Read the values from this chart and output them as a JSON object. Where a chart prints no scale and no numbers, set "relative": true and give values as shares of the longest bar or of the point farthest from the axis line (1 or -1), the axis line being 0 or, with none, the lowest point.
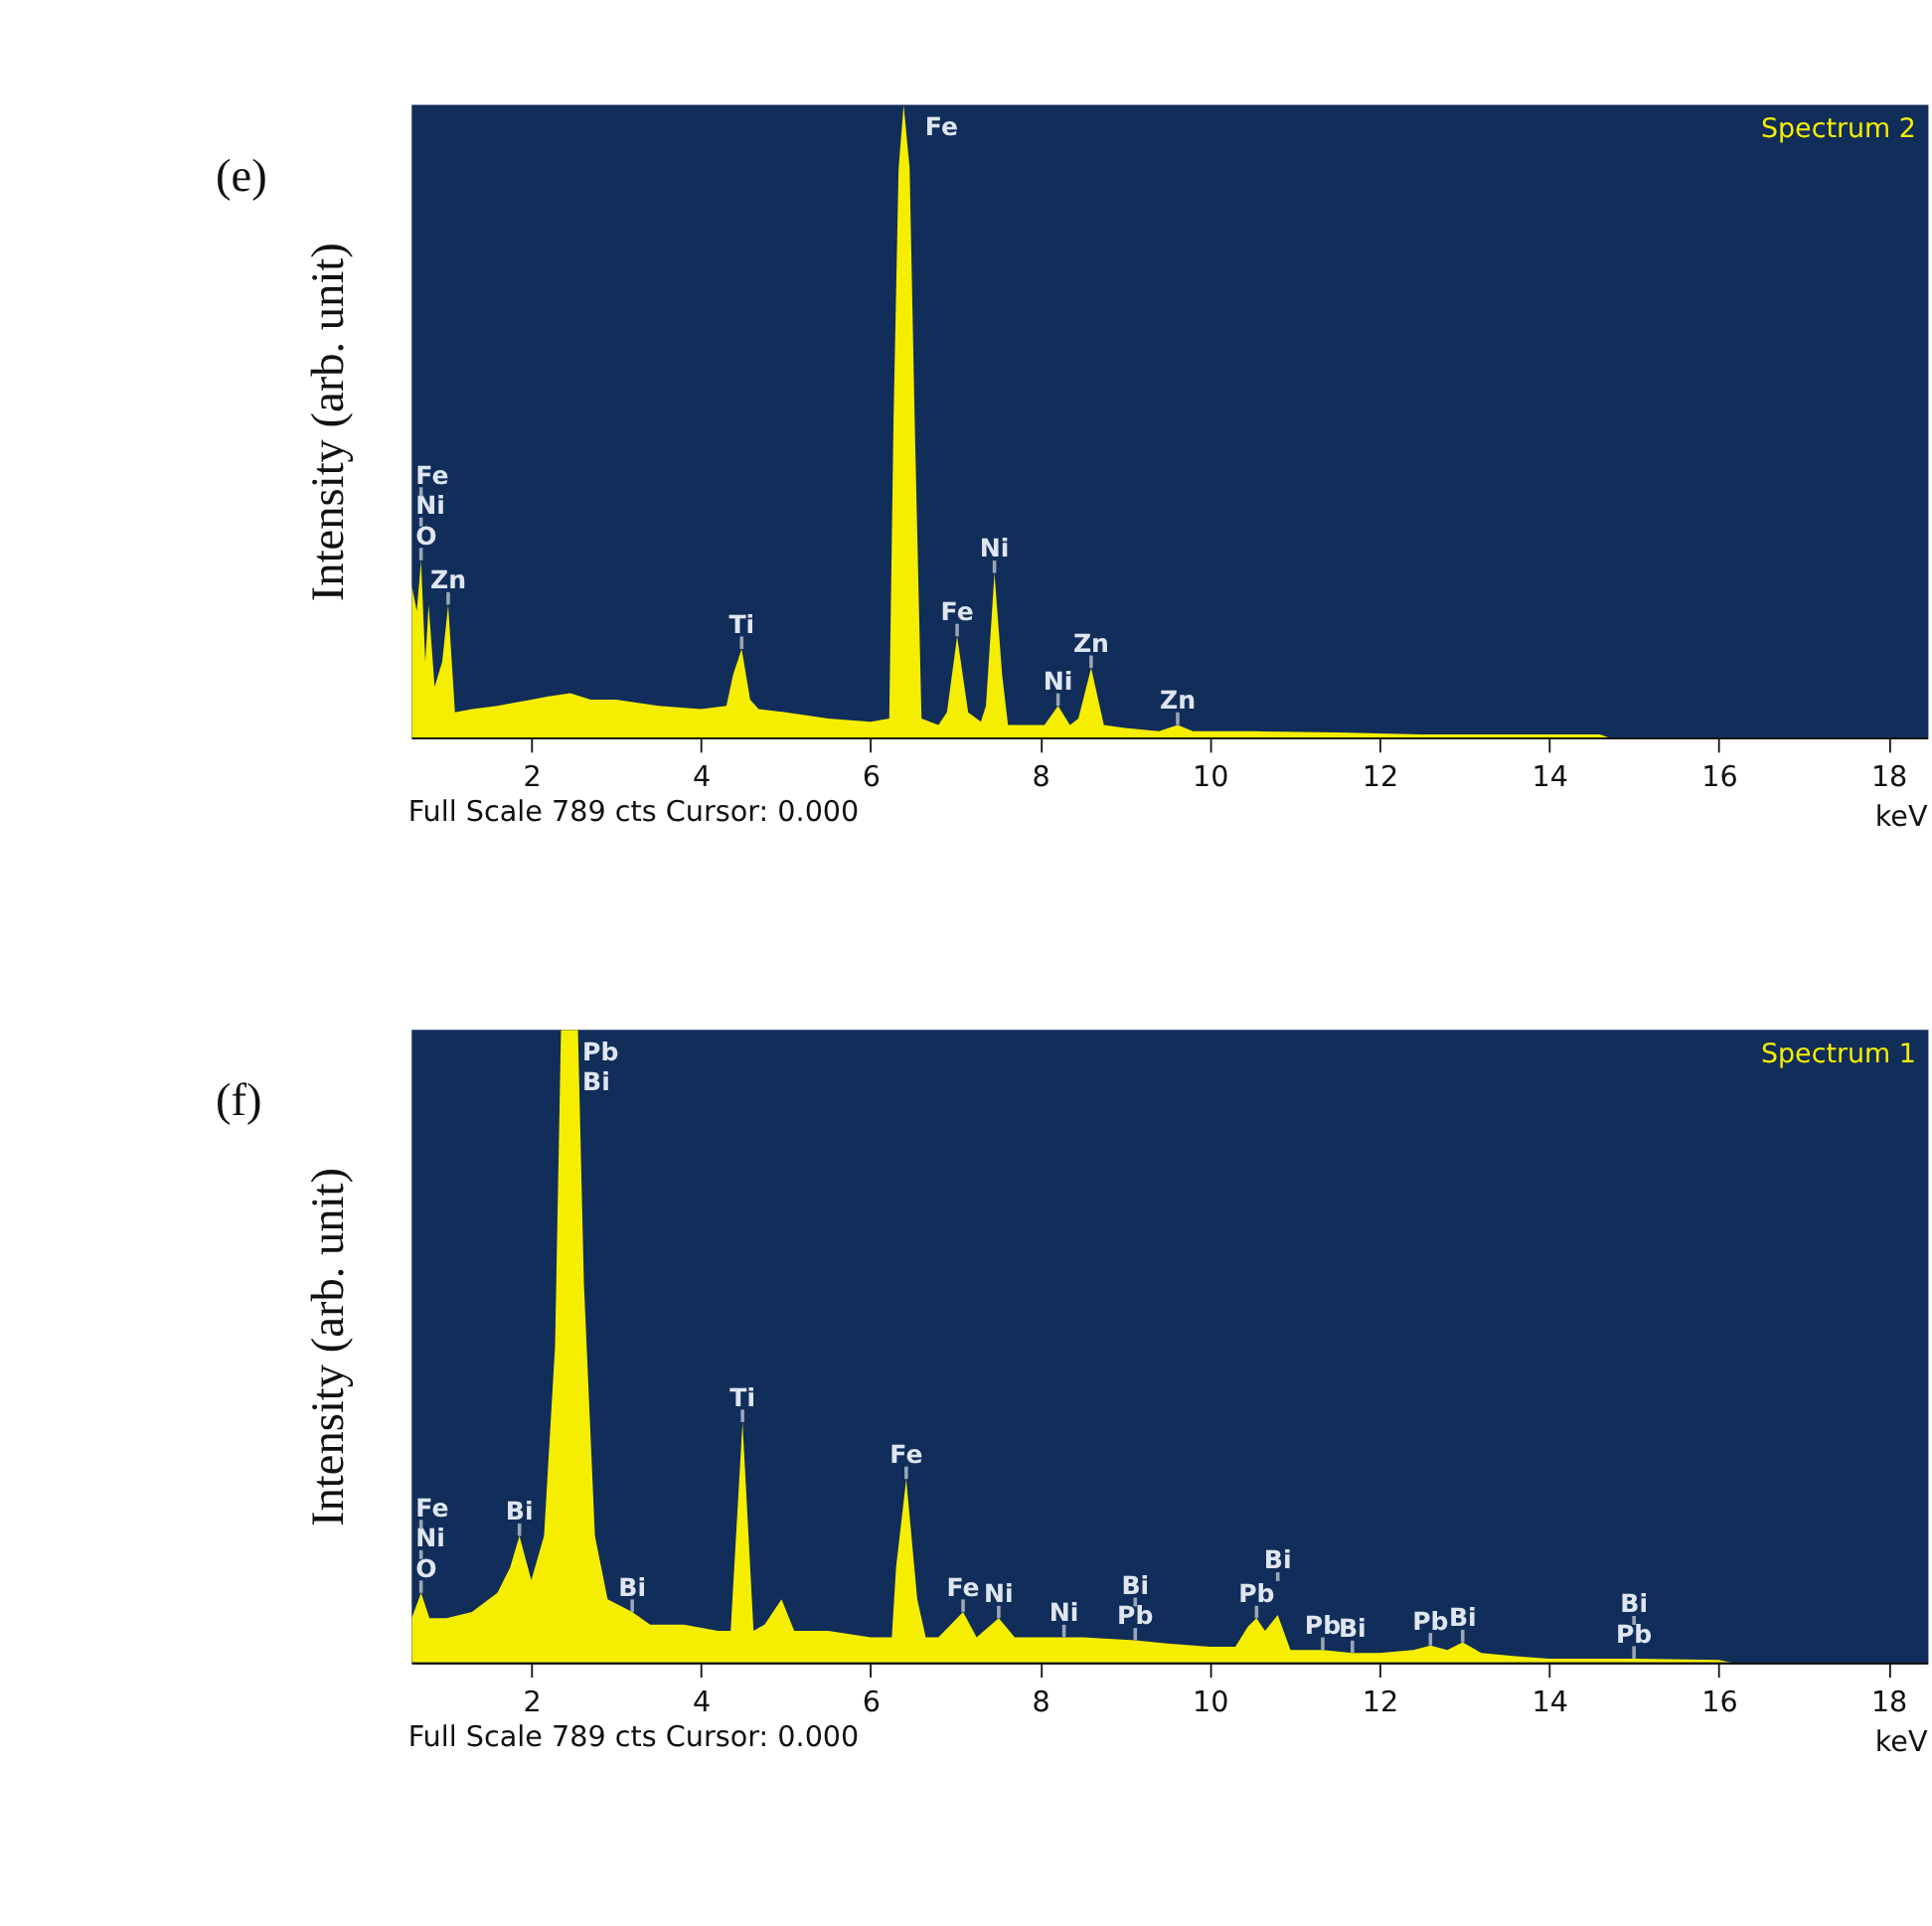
{
  "chart_data": [
    {
      "type": "area",
      "title": "(e)",
      "ylabel": "Intensity (arb. unit)",
      "xlabel": "keV",
      "relative": true,
      "xlim": [
        0.59,
        18.45
      ],
      "xticks": [
        2,
        4,
        6,
        8,
        10,
        12,
        14,
        16,
        18
      ],
      "legend": "top right",
      "series": [
        {
          "name": "Spectrum 2",
          "color": "#f5ee00",
          "x": [
            0.59,
            0.65,
            0.7,
            0.75,
            0.79,
            0.86,
            0.95,
            1.02,
            1.1,
            1.3,
            1.6,
            2.0,
            2.2,
            2.46,
            2.7,
            3.0,
            3.5,
            4.0,
            4.3,
            4.38,
            4.48,
            4.58,
            4.68,
            5.0,
            5.5,
            6.0,
            6.22,
            6.27,
            6.33,
            6.39,
            6.46,
            6.52,
            6.6,
            6.8,
            6.9,
            7.02,
            7.15,
            7.3,
            7.36,
            7.46,
            7.55,
            7.62,
            7.8,
            8.05,
            8.21,
            8.35,
            8.45,
            8.6,
            8.75,
            9.0,
            9.4,
            9.62,
            9.8,
            10.5,
            11.5,
            12.5,
            14.6,
            14.7,
            18.45
          ],
          "values": [
            0.24,
            0.2,
            0.28,
            0.12,
            0.21,
            0.08,
            0.12,
            0.21,
            0.04,
            0.045,
            0.05,
            0.06,
            0.065,
            0.07,
            0.06,
            0.06,
            0.05,
            0.045,
            0.05,
            0.1,
            0.14,
            0.06,
            0.045,
            0.04,
            0.03,
            0.025,
            0.03,
            0.5,
            0.9,
            1.0,
            0.9,
            0.5,
            0.03,
            0.02,
            0.04,
            0.16,
            0.04,
            0.025,
            0.05,
            0.26,
            0.1,
            0.02,
            0.02,
            0.02,
            0.05,
            0.02,
            0.03,
            0.11,
            0.02,
            0.015,
            0.01,
            0.02,
            0.01,
            0.01,
            0.008,
            0.005,
            0.005,
            0,
            0
          ]
        }
      ],
      "annotations": [
        {
          "text": "Zn",
          "x": 1.02,
          "y": 0.21
        },
        {
          "text": "O",
          "x": 0.7,
          "y": 0.28
        },
        {
          "text": "Ni",
          "x": 0.7,
          "y": 0.28
        },
        {
          "text": "Fe",
          "x": 0.7,
          "y": 0.28
        },
        {
          "text": "Ti",
          "x": 4.48,
          "y": 0.14
        },
        {
          "text": "Fe",
          "x": 6.39,
          "y": 1.0
        },
        {
          "text": "Fe",
          "x": 7.02,
          "y": 0.16
        },
        {
          "text": "Ni",
          "x": 7.46,
          "y": 0.26
        },
        {
          "text": "Ni",
          "x": 8.21,
          "y": 0.05
        },
        {
          "text": "Zn",
          "x": 8.6,
          "y": 0.11
        },
        {
          "text": "Zn",
          "x": 9.62,
          "y": 0.02
        },
        "Full Scale 789 cts Cursor: 0.000"
      ]
    },
    {
      "type": "area",
      "title": "(f)",
      "ylabel": "Intensity (arb. unit)",
      "xlabel": "keV",
      "relative": true,
      "xlim": [
        0.59,
        18.45
      ],
      "xticks": [
        2,
        4,
        6,
        8,
        10,
        12,
        14,
        16,
        18
      ],
      "legend": "top right",
      "series": [
        {
          "name": "Spectrum 1",
          "color": "#f5ee00",
          "x": [
            0.59,
            0.7,
            0.8,
            1.0,
            1.3,
            1.6,
            1.75,
            1.86,
            2.0,
            2.15,
            2.28,
            2.35,
            2.55,
            2.62,
            2.75,
            2.9,
            3.19,
            3.4,
            3.8,
            4.2,
            4.35,
            4.49,
            4.62,
            4.75,
            4.95,
            5.1,
            5.5,
            6.0,
            6.25,
            6.3,
            6.42,
            6.55,
            6.65,
            6.8,
            7.09,
            7.25,
            7.51,
            7.7,
            8.0,
            8.28,
            8.5,
            9.12,
            9.5,
            10.0,
            10.3,
            10.45,
            10.55,
            10.65,
            10.8,
            10.95,
            11.33,
            11.68,
            12.0,
            12.4,
            12.6,
            12.8,
            12.98,
            13.2,
            13.6,
            14.0,
            15.0,
            16.0,
            16.15,
            18.45
          ],
          "values": [
            0.07,
            0.11,
            0.07,
            0.07,
            0.08,
            0.11,
            0.15,
            0.2,
            0.13,
            0.2,
            0.5,
            1.0,
            1.0,
            0.6,
            0.2,
            0.1,
            0.08,
            0.06,
            0.06,
            0.05,
            0.05,
            0.38,
            0.05,
            0.06,
            0.1,
            0.05,
            0.05,
            0.04,
            0.04,
            0.15,
            0.29,
            0.1,
            0.04,
            0.04,
            0.08,
            0.04,
            0.07,
            0.04,
            0.04,
            0.04,
            0.04,
            0.035,
            0.03,
            0.025,
            0.025,
            0.057,
            0.07,
            0.05,
            0.075,
            0.02,
            0.02,
            0.015,
            0.015,
            0.02,
            0.027,
            0.02,
            0.032,
            0.015,
            0.01,
            0.006,
            0.006,
            0.004,
            0,
            0
          ]
        }
      ],
      "annotations": [
        {
          "text": "O",
          "x": 0.7,
          "y": 0.11
        },
        {
          "text": "Ni",
          "x": 0.7,
          "y": 0.11
        },
        {
          "text": "Fe",
          "x": 0.7,
          "y": 0.11
        },
        {
          "text": "Bi",
          "x": 1.86,
          "y": 0.2
        },
        {
          "text": "Pb",
          "x": 2.35,
          "y": 1.0
        },
        {
          "text": "Bi",
          "x": 2.35,
          "y": 1.0
        },
        {
          "text": "Bi",
          "x": 3.19,
          "y": 0.08
        },
        {
          "text": "Ti",
          "x": 4.49,
          "y": 0.38
        },
        {
          "text": "Fe",
          "x": 6.42,
          "y": 0.29
        },
        {
          "text": "Fe",
          "x": 7.09,
          "y": 0.08
        },
        {
          "text": "Ni",
          "x": 7.51,
          "y": 0.07
        },
        {
          "text": "Ni",
          "x": 8.28,
          "y": 0.04
        },
        {
          "text": "Pb",
          "x": 9.12,
          "y": 0.035
        },
        {
          "text": "Bi",
          "x": 9.12,
          "y": 0.035
        },
        {
          "text": "Pb",
          "x": 10.55,
          "y": 0.07
        },
        {
          "text": "Bi",
          "x": 10.8,
          "y": 0.075
        },
        {
          "text": "Pb",
          "x": 11.33,
          "y": 0.02
        },
        {
          "text": "Bi",
          "x": 11.68,
          "y": 0.015
        },
        {
          "text": "Pb",
          "x": 12.6,
          "y": 0.027
        },
        {
          "text": "Bi",
          "x": 12.98,
          "y": 0.032
        },
        {
          "text": "Pb",
          "x": 15.0,
          "y": 0.006
        },
        {
          "text": "Bi",
          "x": 15.0,
          "y": 0.006
        },
        "Full Scale 789 cts Cursor: 0.000"
      ]
    }
  ]
}
